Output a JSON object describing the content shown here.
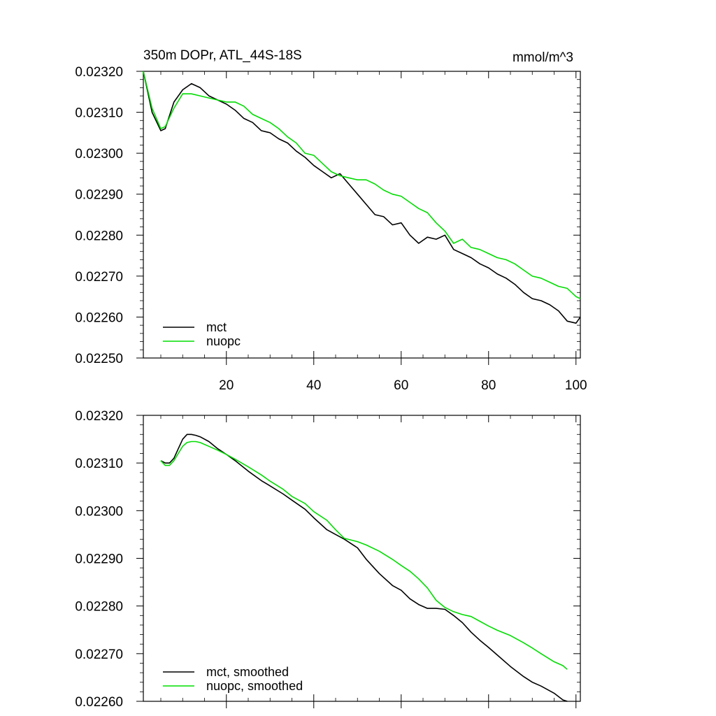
{
  "chart_data": [
    {
      "type": "line",
      "title": "350m DOPr, ATL_44S-18S",
      "units": "mmol/m^3",
      "xlabel": "",
      "ylabel": "",
      "xlim": [
        1,
        101
      ],
      "ylim": [
        0.0225,
        0.0232
      ],
      "xticks": [
        20,
        40,
        60,
        80,
        100
      ],
      "xtick_labels": [
        "20",
        "40",
        "60",
        "80",
        "100"
      ],
      "yticks": [
        0.0225,
        0.0226,
        0.0227,
        0.0228,
        0.0229,
        0.023,
        0.0231,
        0.0232
      ],
      "ytick_labels": [
        "0.02250",
        "0.02260",
        "0.02270",
        "0.02280",
        "0.02290",
        "0.02300",
        "0.02310",
        "0.02320"
      ],
      "legend_position": "bottom-left",
      "series": [
        {
          "name": "mct",
          "color": "#000000",
          "x": [
            1,
            3,
            5,
            6,
            8,
            10,
            12,
            14,
            16,
            18,
            20,
            22,
            24,
            26,
            28,
            30,
            32,
            34,
            36,
            38,
            40,
            42,
            44,
            46,
            48,
            50,
            52,
            54,
            56,
            58,
            60,
            62,
            64,
            66,
            68,
            70,
            72,
            74,
            76,
            78,
            80,
            82,
            84,
            86,
            88,
            90,
            92,
            94,
            96,
            98,
            100,
            101
          ],
          "values": [
            0.0232,
            0.0231,
            0.023055,
            0.02306,
            0.023125,
            0.023155,
            0.02317,
            0.02316,
            0.02314,
            0.02313,
            0.02312,
            0.023105,
            0.023085,
            0.023075,
            0.023055,
            0.02305,
            0.023035,
            0.023025,
            0.023005,
            0.02299,
            0.02297,
            0.022955,
            0.02294,
            0.02295,
            0.022925,
            0.0229,
            0.022875,
            0.02285,
            0.022845,
            0.022825,
            0.02283,
            0.0228,
            0.02278,
            0.022795,
            0.02279,
            0.0228,
            0.022765,
            0.022755,
            0.022745,
            0.02273,
            0.02272,
            0.022705,
            0.022695,
            0.02268,
            0.02266,
            0.022645,
            0.02264,
            0.02263,
            0.022615,
            0.02259,
            0.022585,
            0.0226
          ]
        },
        {
          "name": "nuopc",
          "color": "#00dd00",
          "x": [
            1,
            3,
            5,
            6,
            8,
            10,
            12,
            14,
            16,
            18,
            20,
            22,
            24,
            26,
            28,
            30,
            32,
            34,
            36,
            38,
            40,
            42,
            44,
            46,
            48,
            50,
            52,
            54,
            56,
            58,
            60,
            62,
            64,
            66,
            68,
            70,
            72,
            74,
            76,
            78,
            80,
            82,
            84,
            86,
            88,
            90,
            92,
            94,
            96,
            98,
            100,
            101
          ],
          "values": [
            0.0232,
            0.02311,
            0.02306,
            0.023065,
            0.02311,
            0.023145,
            0.023145,
            0.02314,
            0.023135,
            0.02313,
            0.023125,
            0.023125,
            0.023115,
            0.023095,
            0.023085,
            0.023075,
            0.02306,
            0.02304,
            0.023025,
            0.023,
            0.022995,
            0.022975,
            0.022955,
            0.022945,
            0.02294,
            0.022935,
            0.022935,
            0.022925,
            0.02291,
            0.0229,
            0.022895,
            0.02288,
            0.022865,
            0.022855,
            0.02283,
            0.02281,
            0.02278,
            0.02279,
            0.02277,
            0.022765,
            0.022755,
            0.022745,
            0.02274,
            0.02273,
            0.022715,
            0.0227,
            0.022695,
            0.022685,
            0.022675,
            0.02267,
            0.02265,
            0.022645
          ]
        }
      ]
    },
    {
      "type": "line",
      "title": "",
      "xlabel": "",
      "ylabel": "",
      "xlim": [
        1,
        101
      ],
      "ylim": [
        0.0226,
        0.0232
      ],
      "xticks": [
        20,
        40,
        60,
        80,
        100
      ],
      "xtick_labels": [],
      "yticks": [
        0.0226,
        0.0227,
        0.0228,
        0.0229,
        0.023,
        0.0231,
        0.0232
      ],
      "ytick_labels": [
        "0.02260",
        "0.02270",
        "0.02280",
        "0.02290",
        "0.02300",
        "0.02310",
        "0.02320"
      ],
      "legend_position": "bottom-left",
      "series": [
        {
          "name": "mct, smoothed",
          "color": "#000000",
          "x": [
            5,
            6,
            7,
            8,
            9,
            10,
            11,
            12,
            13,
            14,
            16,
            18,
            20,
            22,
            25,
            28,
            30,
            33,
            35,
            38,
            40,
            43,
            45,
            47,
            50,
            52,
            55,
            58,
            60,
            62,
            64,
            66,
            68,
            70,
            72,
            74,
            76,
            78,
            80,
            82,
            85,
            88,
            90,
            92,
            95,
            97,
            98
          ],
          "values": [
            0.023105,
            0.0231,
            0.0231,
            0.02311,
            0.02313,
            0.02315,
            0.02316,
            0.02316,
            0.023158,
            0.023155,
            0.023145,
            0.02313,
            0.023118,
            0.023105,
            0.023083,
            0.023063,
            0.023052,
            0.023035,
            0.023022,
            0.023003,
            0.022985,
            0.02296,
            0.02295,
            0.02294,
            0.022922,
            0.022898,
            0.022868,
            0.022843,
            0.022833,
            0.022815,
            0.022803,
            0.022795,
            0.022795,
            0.022793,
            0.02278,
            0.022765,
            0.022745,
            0.022728,
            0.022713,
            0.022697,
            0.022673,
            0.022652,
            0.02264,
            0.022632,
            0.022617,
            0.022603,
            0.0226
          ]
        },
        {
          "name": "nuopc, smoothed",
          "color": "#00dd00",
          "x": [
            5,
            6,
            7,
            8,
            9,
            10,
            11,
            12,
            13,
            14,
            16,
            18,
            20,
            22,
            25,
            28,
            30,
            33,
            35,
            38,
            40,
            43,
            45,
            47,
            50,
            52,
            55,
            58,
            60,
            62,
            64,
            66,
            68,
            70,
            72,
            74,
            76,
            78,
            80,
            82,
            85,
            88,
            90,
            92,
            95,
            97,
            98
          ],
          "values": [
            0.023105,
            0.023095,
            0.023095,
            0.023105,
            0.02312,
            0.023135,
            0.023143,
            0.023145,
            0.023145,
            0.023143,
            0.023135,
            0.023127,
            0.023118,
            0.023108,
            0.023092,
            0.023075,
            0.023062,
            0.023045,
            0.02303,
            0.023015,
            0.022998,
            0.02298,
            0.02296,
            0.022942,
            0.022935,
            0.022928,
            0.022915,
            0.022898,
            0.022885,
            0.022873,
            0.022857,
            0.022838,
            0.022812,
            0.022797,
            0.022788,
            0.022782,
            0.022778,
            0.022768,
            0.022758,
            0.022749,
            0.022738,
            0.022723,
            0.022712,
            0.0227,
            0.022683,
            0.022675,
            0.022667
          ]
        }
      ]
    }
  ]
}
